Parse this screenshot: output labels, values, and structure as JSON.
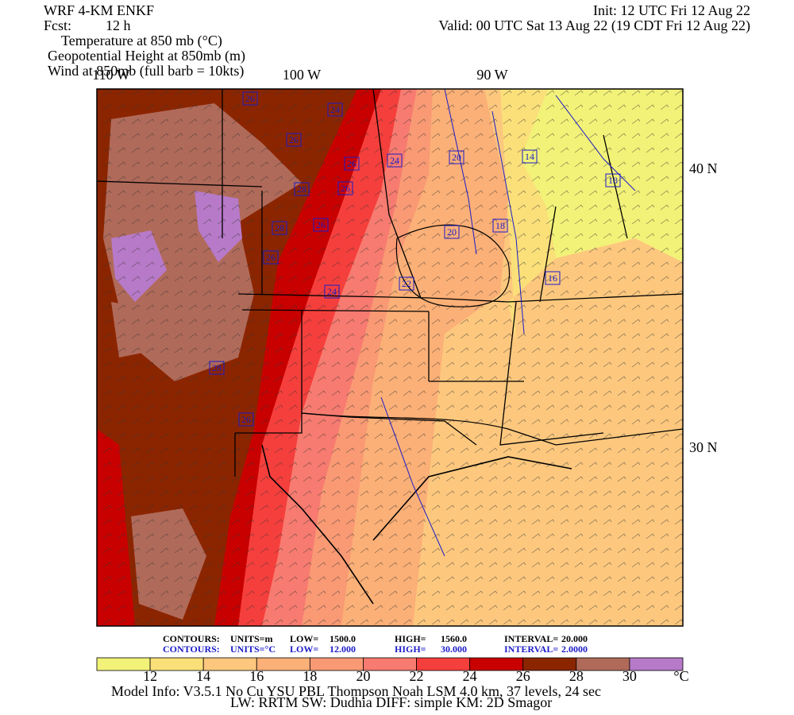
{
  "header": {
    "model": "WRF 4-KM ENKF",
    "fcst_label": "Fcst:",
    "fcst": "12 h",
    "init": "Init: 12 UTC Fri 12 Aug 22",
    "valid": "Valid: 00 UTC Sat 13 Aug 22 (19 CDT Fri 12 Aug 22)",
    "fields": [
      "Temperature at 850 mb (°C)",
      "Geopotential Height at 850mb (m)",
      "Wind at 850mb (full barb = 10kts)"
    ]
  },
  "map": {
    "lon_labels": [
      "110 W",
      "100 W",
      "90 W"
    ],
    "lat_labels": [
      "40 N",
      "30 N"
    ],
    "contour_labels": [
      26,
      24,
      26,
      24,
      26,
      20,
      14,
      28,
      26,
      18,
      26,
      28,
      20,
      18,
      26,
      16,
      22,
      24,
      28,
      26
    ]
  },
  "contours": [
    {
      "label": "CONTOURS:",
      "units": "UNITS=m",
      "low_label": "LOW=",
      "low": "1500.0",
      "high_label": "HIGH=",
      "high": "1560.0",
      "interval_label": "INTERVAL=",
      "interval": "20.000"
    },
    {
      "label": "CONTOURS:",
      "units": "UNITS=°C",
      "low_label": "LOW=",
      "low": "12.000",
      "high_label": "HIGH=",
      "high": "30.000",
      "interval_label": "INTERVAL=",
      "interval": "2.0000"
    }
  ],
  "colorbar": {
    "colors": [
      "#f2f278",
      "#fbe07a",
      "#fdc87e",
      "#fbb077",
      "#f99a74",
      "#f77b70",
      "#f53f3c",
      "#c80000",
      "#8b2500",
      "#b06a5a",
      "#b77ac8"
    ],
    "ticks": [
      12,
      14,
      16,
      18,
      20,
      22,
      24,
      26,
      28,
      30
    ],
    "unit": "°C"
  },
  "footer": [
    "Model Info: V3.5.1    No Cu    YSU PBL  Thompson     Noah LSM  4.0 km,  37 levels,    24 sec",
    "LW: RRTM SW: Dudhia  DIFF: simple KM: 2D Smagor"
  ]
}
